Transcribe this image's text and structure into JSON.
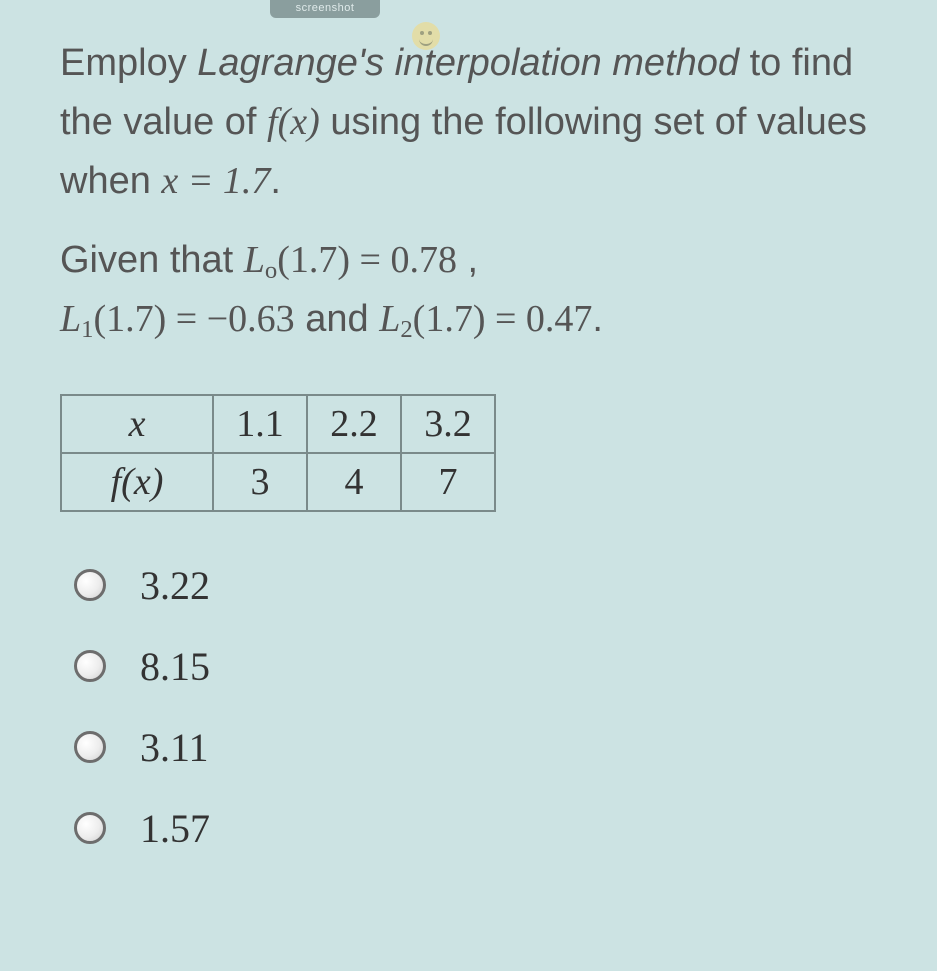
{
  "ui": {
    "tab_label": "screenshot",
    "background_color": "#cce3e3",
    "text_color": "#555555",
    "table_border_color": "#7a8a8a"
  },
  "question": {
    "p1_a": "Employ ",
    "p1_ital": "Lagrange's interpolation method",
    "p1_b": " to find the value of ",
    "p1_fx": "f(x)",
    "p1_c": " using the following set of values when ",
    "p1_eq": "x = 1.7",
    "p1_d": ".",
    "p2_a": "Given that ",
    "L0_lhs": "L",
    "L0_sub": "o",
    "L0_arg": "(1.7) = 0.78",
    "comma": " ,",
    "L1_lhs": "L",
    "L1_sub": "1",
    "L1_arg": "(1.7) = −0.63",
    "and": " and ",
    "L2_lhs": "L",
    "L2_sub": "2",
    "L2_arg": "(1.7) = 0.47",
    "period": "."
  },
  "table": {
    "row1_label": "x",
    "row2_label": "f(x)",
    "x": [
      "1.1",
      "2.2",
      "3.2"
    ],
    "fx": [
      "3",
      "4",
      "7"
    ]
  },
  "options": [
    {
      "label": "3.22"
    },
    {
      "label": "8.15"
    },
    {
      "label": "3.11"
    },
    {
      "label": "1.57"
    }
  ]
}
